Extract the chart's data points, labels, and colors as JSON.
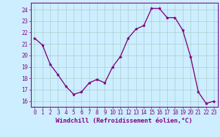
{
  "x": [
    0,
    1,
    2,
    3,
    4,
    5,
    6,
    7,
    8,
    9,
    10,
    11,
    12,
    13,
    14,
    15,
    16,
    17,
    18,
    19,
    20,
    21,
    22,
    23
  ],
  "y": [
    21.5,
    20.9,
    19.2,
    18.3,
    17.3,
    16.6,
    16.8,
    17.6,
    17.9,
    17.6,
    19.0,
    19.9,
    21.5,
    22.3,
    22.6,
    24.1,
    24.1,
    23.3,
    23.3,
    22.2,
    19.9,
    16.8,
    15.8,
    16.0
  ],
  "line_color": "#800080",
  "marker": "*",
  "marker_size": 3,
  "bg_color": "#cceeff",
  "grid_color": "#aacccc",
  "xlabel": "Windchill (Refroidissement éolien,°C)",
  "ylim": [
    15.5,
    24.6
  ],
  "xlim": [
    -0.5,
    23.5
  ],
  "yticks": [
    16,
    17,
    18,
    19,
    20,
    21,
    22,
    23,
    24
  ],
  "xticks": [
    0,
    1,
    2,
    3,
    4,
    5,
    6,
    7,
    8,
    9,
    10,
    11,
    12,
    13,
    14,
    15,
    16,
    17,
    18,
    19,
    20,
    21,
    22,
    23
  ],
  "tick_fontsize": 5.5,
  "xlabel_fontsize": 6.5
}
